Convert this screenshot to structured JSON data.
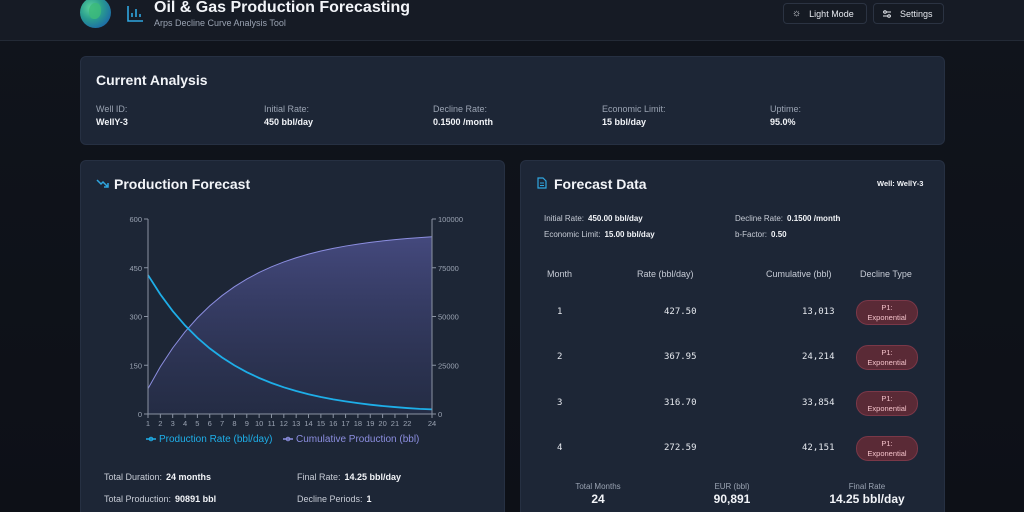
{
  "header": {
    "title": "Oil & Gas Production Forecasting",
    "subtitle": "Arps Decline Curve Analysis Tool",
    "light_mode_label": "Light Mode",
    "settings_label": "Settings"
  },
  "analysis": {
    "title": "Current Analysis",
    "fields": [
      {
        "label": "Well ID:",
        "value": "WellY-3"
      },
      {
        "label": "Initial Rate:",
        "value": "450 bbl/day"
      },
      {
        "label": "Decline Rate:",
        "value": "0.1500 /month"
      },
      {
        "label": "Economic Limit:",
        "value": "15 bbl/day"
      },
      {
        "label": "Uptime:",
        "value": "95.0%"
      }
    ]
  },
  "forecast": {
    "title": "Production Forecast",
    "stats": {
      "duration_label": "Total Duration:",
      "duration_value": "24 months",
      "final_rate_label": "Final Rate:",
      "final_rate_value": "14.25 bbl/day",
      "production_label": "Total Production:",
      "production_value": "90891 bbl",
      "periods_label": "Decline Periods:",
      "periods_value": "1"
    }
  },
  "chart_data": {
    "type": "line",
    "x": [
      1,
      2,
      3,
      4,
      5,
      6,
      7,
      8,
      9,
      10,
      11,
      12,
      13,
      14,
      15,
      16,
      17,
      18,
      19,
      20,
      21,
      22,
      23,
      24
    ],
    "x_ticks": [
      "1",
      "2",
      "3",
      "4",
      "5",
      "6",
      "7",
      "8",
      "9",
      "10",
      "11",
      "12",
      "13",
      "14",
      "15",
      "16",
      "17",
      "18",
      "19",
      "20",
      "21",
      "22",
      "24"
    ],
    "series": [
      {
        "name": "Production Rate (bbl/day)",
        "axis": "left",
        "color": "#1eaee8",
        "values": [
          427.5,
          367.95,
          316.7,
          272.59,
          234.6,
          201.9,
          173.8,
          149.6,
          128.8,
          110.8,
          95.4,
          82.1,
          70.7,
          60.8,
          52.3,
          45.0,
          38.8,
          33.4,
          28.7,
          24.7,
          21.3,
          18.3,
          15.8,
          14.25
        ]
      },
      {
        "name": "Cumulative Production (bbl)",
        "axis": "right",
        "color": "#8c8ee0",
        "values": [
          13013,
          24214,
          33854,
          42151,
          49291,
          55438,
          60728,
          65281,
          69200,
          72573,
          75476,
          77975,
          80126,
          81977,
          83570,
          84941,
          86122,
          87138,
          88012,
          88765,
          89413,
          89970,
          90450,
          90891
        ]
      }
    ],
    "y_left": {
      "ticks": [
        "0",
        "150",
        "300",
        "450",
        "600"
      ],
      "range": [
        0,
        600
      ]
    },
    "y_right": {
      "ticks": [
        "0",
        "25000",
        "50000",
        "75000",
        "100000"
      ],
      "range": [
        0,
        100000
      ]
    },
    "legend_position": "bottom",
    "grid": false
  },
  "table": {
    "title": "Forecast Data",
    "well_label": "Well: WellY-3",
    "params": [
      {
        "label": "Initial Rate:",
        "value": "450.00 bbl/day"
      },
      {
        "label": "Decline Rate:",
        "value": "0.1500 /month"
      },
      {
        "label": "Economic Limit:",
        "value": "15.00 bbl/day"
      },
      {
        "label": "b-Factor:",
        "value": "0.50"
      }
    ],
    "headers": [
      "Month",
      "Rate (bbl/day)",
      "Cumulative (bbl)",
      "Decline Type"
    ],
    "rows": [
      {
        "month": "1",
        "rate": "427.50",
        "cumulative": "13,013",
        "type_line1": "P1:",
        "type_line2": "Exponential"
      },
      {
        "month": "2",
        "rate": "367.95",
        "cumulative": "24,214",
        "type_line1": "P1:",
        "type_line2": "Exponential"
      },
      {
        "month": "3",
        "rate": "316.70",
        "cumulative": "33,854",
        "type_line1": "P1:",
        "type_line2": "Exponential"
      },
      {
        "month": "4",
        "rate": "272.59",
        "cumulative": "42,151",
        "type_line1": "P1:",
        "type_line2": "Exponential"
      }
    ],
    "summary": [
      {
        "label": "Total Months",
        "value": "24"
      },
      {
        "label": "EUR (bbl)",
        "value": "90,891"
      },
      {
        "label": "Final Rate",
        "value": "14.25 bbl/day"
      }
    ]
  }
}
